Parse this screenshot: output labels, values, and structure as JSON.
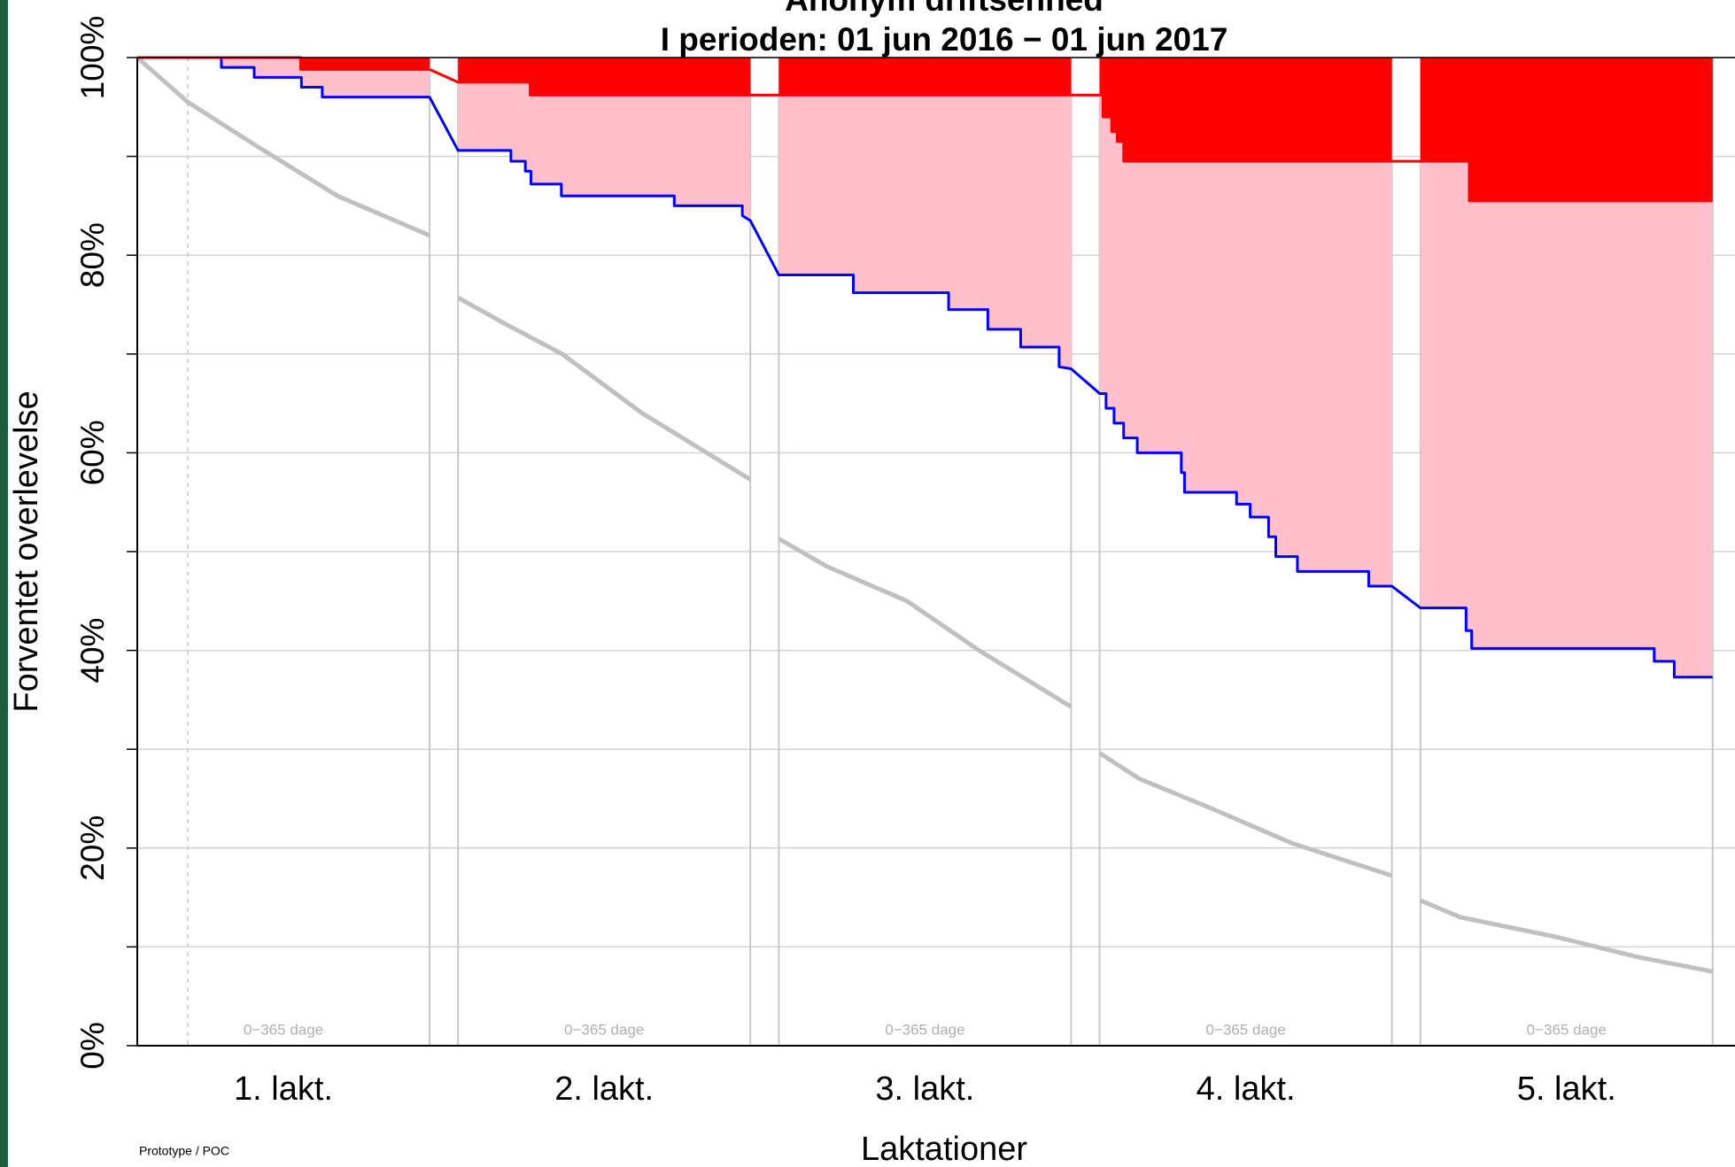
{
  "chart_data": {
    "type": "line",
    "title": "Anonym driftsenhed",
    "subtitle": "I perioden: 01 jun 2016 − 01 jun 2017",
    "xlabel": "Laktationer",
    "ylabel": "Forventet overlevelse",
    "categories": [
      "1. lakt.",
      "2. lakt.",
      "3. lakt.",
      "4. lakt.",
      "5. lakt."
    ],
    "panel_note": "0−365 dage",
    "footer": "Prototype / POC",
    "xlim": [
      0,
      365
    ],
    "ylim": [
      0,
      100
    ],
    "yticks": [
      {
        "value": 0,
        "label": "0%"
      },
      {
        "value": 20,
        "label": "20%"
      },
      {
        "value": 40,
        "label": "40%"
      },
      {
        "value": 60,
        "label": "60%"
      },
      {
        "value": 80,
        "label": "80%"
      },
      {
        "value": 100,
        "label": "100%"
      }
    ],
    "minor_yticks": [
      10,
      30,
      50,
      70,
      90
    ],
    "grid": true,
    "marker_day": 63,
    "series": [
      {
        "color": "#0000ff",
        "panels": [
          {
            "x": [
              0,
              105,
              105,
              146,
              146,
              205,
              205,
              231,
              231,
              365
            ],
            "values": [
              100,
              100,
              99,
              99,
              98,
              98,
              97,
              97,
              96,
              96
            ]
          },
          {
            "x": [
              0,
              66,
              66,
              84,
              84,
              91,
              91,
              129,
              129,
              270,
              270,
              355,
              355,
              365
            ],
            "values": [
              90.6,
              90.6,
              89.5,
              89.5,
              88.5,
              88.5,
              87.2,
              87.2,
              86,
              86,
              85,
              85,
              84,
              83.5
            ]
          },
          {
            "x": [
              0,
              93,
              93,
              212,
              212,
              261,
              261,
              302,
              302,
              350,
              350,
              365
            ],
            "values": [
              78,
              78,
              76.2,
              76.2,
              74.5,
              74.5,
              72.5,
              72.5,
              70.7,
              70.7,
              68.7,
              68.5
            ]
          },
          {
            "x": [
              0,
              8,
              8,
              18,
              18,
              30,
              30,
              47,
              47,
              102,
              102,
              106,
              106,
              171,
              171,
              188,
              188,
              211,
              211,
              220,
              220,
              247,
              247,
              336,
              336,
              365
            ],
            "values": [
              66,
              66,
              64.5,
              64.5,
              63,
              63,
              61.5,
              61.5,
              60,
              60,
              58,
              58,
              56,
              56,
              54.8,
              54.8,
              53.5,
              53.5,
              51.5,
              51.5,
              49.5,
              49.5,
              48,
              48,
              46.5,
              46.5
            ]
          },
          {
            "x": [
              0,
              57,
              57,
              64,
              64,
              292,
              292,
              317,
              317,
              365
            ],
            "values": [
              44.3,
              44.3,
              42,
              42,
              40.2,
              40.2,
              38.9,
              38.9,
              37.3,
              37.3
            ]
          }
        ]
      },
      {
        "color": "#c0c0c0",
        "panels": [
          {
            "x": [
              0,
              63,
              150,
              250,
              365
            ],
            "values": [
              100,
              95.5,
              91,
              86,
              82
            ]
          },
          {
            "x": [
              0,
              60,
              130,
              230,
              365
            ],
            "values": [
              75.7,
              73,
              70,
              64,
              57.3
            ]
          },
          {
            "x": [
              0,
              60,
              160,
              250,
              365
            ],
            "values": [
              51.3,
              48.5,
              45,
              40,
              34.3
            ]
          },
          {
            "x": [
              0,
              50,
              140,
              240,
              365
            ],
            "values": [
              29.6,
              27,
              24,
              20.5,
              17.2
            ]
          },
          {
            "x": [
              0,
              50,
              170,
              270,
              365
            ],
            "values": [
              14.7,
              13,
              11,
              9,
              7.5
            ]
          }
        ]
      },
      {
        "color": "#ff0000",
        "panels": [
          {
            "x": [
              0,
              204,
              204,
              365
            ],
            "values": [
              100,
              100,
              98.8,
              98.8
            ]
          },
          {
            "x": [
              0,
              90,
              90,
              365
            ],
            "values": [
              97.5,
              97.5,
              96.2,
              96.2
            ]
          },
          {
            "x": [
              0,
              365
            ],
            "values": [
              96.2,
              96.2
            ]
          },
          {
            "x": [
              0,
              4,
              4,
              15,
              15,
              22,
              22,
              30,
              30,
              365
            ],
            "values": [
              96.2,
              96.2,
              94,
              94,
              92.5,
              92.5,
              91.5,
              91.5,
              89.5,
              89.5
            ]
          },
          {
            "x": [
              0,
              61,
              61,
              365
            ],
            "values": [
              89.5,
              89.5,
              85.5,
              85.5
            ]
          }
        ]
      }
    ]
  }
}
